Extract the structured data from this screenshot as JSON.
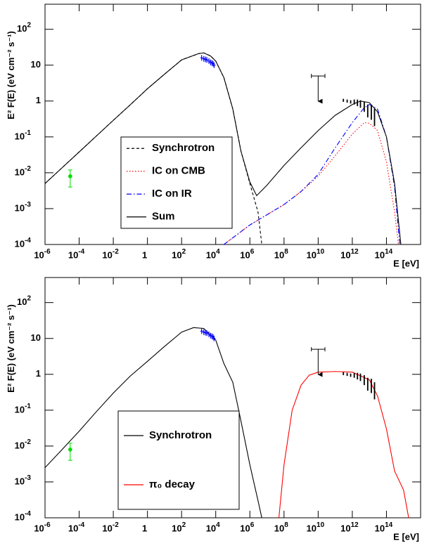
{
  "chart_data": [
    {
      "type": "line",
      "xscale": "log",
      "yscale": "log",
      "xlabel": "E [eV]",
      "ylabel": "E² F(E) (eV cm⁻² s⁻¹)",
      "xlim": [
        1e-06,
        1e+16
      ],
      "ylim": [
        0.0001,
        500
      ],
      "xticks": [
        {
          "value": 1e-06,
          "label": "10",
          "exponent": "-6"
        },
        {
          "value": 0.0001,
          "label": "10",
          "exponent": "-4"
        },
        {
          "value": 0.01,
          "label": "10",
          "exponent": "-2"
        },
        1,
        {
          "value": 100,
          "label": "10",
          "exponent": "2"
        },
        {
          "value": 10000.0,
          "label": "10",
          "exponent": "4"
        },
        {
          "value": 1000000.0,
          "label": "10",
          "exponent": "6"
        },
        {
          "value": 100000000.0,
          "label": "10",
          "exponent": "8"
        },
        {
          "value": 10000000000.0,
          "label": "10",
          "exponent": "10"
        },
        {
          "value": 1000000000000.0,
          "label": "10",
          "exponent": "12"
        },
        {
          "value": 100000000000000.0,
          "label": "10",
          "exponent": "14"
        }
      ],
      "yticks": [
        {
          "value": 0.0001,
          "label": "10",
          "exponent": "-4"
        },
        {
          "value": 0.001,
          "label": "10",
          "exponent": "-3"
        },
        {
          "value": 0.01,
          "label": "10",
          "exponent": "-2"
        },
        {
          "value": 0.1,
          "label": "10",
          "exponent": "-1"
        },
        1,
        10,
        {
          "value": 100,
          "label": "10",
          "exponent": "2"
        }
      ],
      "series": [
        {
          "name": "Synchrotron",
          "color": "#000000",
          "dash": "dashed",
          "x": [
            1e-06,
            1e-05,
            0.0001,
            0.001,
            0.01,
            0.1,
            1,
            10,
            100,
            1000,
            2000,
            5000,
            10000,
            30000,
            100000,
            300000,
            1000000,
            3000000,
            5000000
          ],
          "y": [
            0.005,
            0.0138,
            0.038,
            0.105,
            0.29,
            0.79,
            2.2,
            5.6,
            14,
            21,
            22,
            18,
            13,
            4.5,
            0.6,
            0.04,
            0.005,
            0.0008,
            0.0001
          ]
        },
        {
          "name": "IC on CMB",
          "color": "#ff0000",
          "dash": "dotted",
          "x": [
            30000,
            1000000,
            100000000,
            1000000000.0,
            10000000000.0,
            100000000000.0,
            1000000000000.0,
            5000000000000.0,
            10000000000000.0,
            30000000000000.0,
            100000000000000.0,
            300000000000000.0,
            500000000000000.0
          ],
          "y": [
            0.0001,
            0.00035,
            0.0013,
            0.003,
            0.008,
            0.03,
            0.12,
            0.25,
            0.24,
            0.15,
            0.02,
            0.0008,
            0.0001
          ]
        },
        {
          "name": "IC on IR",
          "color": "#0000ff",
          "dash": "dashdot",
          "x": [
            30000,
            1000000,
            100000000,
            1000000000.0,
            10000000000.0,
            100000000000.0,
            1000000000000.0,
            5000000000000.0,
            10000000000000.0,
            30000000000000.0,
            100000000000000.0,
            300000000000000.0,
            600000000000000.0
          ],
          "y": [
            0.0001,
            0.00035,
            0.0013,
            0.003,
            0.009,
            0.05,
            0.25,
            0.65,
            0.8,
            0.6,
            0.1,
            0.004,
            0.0001
          ]
        },
        {
          "name": "Sum",
          "color": "#000000",
          "dash": "solid",
          "x": [
            1e-06,
            1e-05,
            0.0001,
            0.001,
            0.01,
            0.1,
            1,
            10,
            100,
            1000,
            2000,
            5000,
            10000,
            30000,
            100000,
            300000,
            1000000,
            2500000,
            10000000,
            100000000,
            1000000000.0,
            10000000000.0,
            100000000000.0,
            1000000000000.0,
            3000000000000.0,
            10000000000000.0,
            30000000000000.0,
            100000000000000.0,
            300000000000000.0,
            700000000000000.0
          ],
          "y": [
            0.005,
            0.0138,
            0.038,
            0.105,
            0.29,
            0.79,
            2.2,
            5.6,
            14,
            21,
            22,
            18,
            13,
            4.5,
            0.6,
            0.04,
            0.0055,
            0.0023,
            0.0045,
            0.016,
            0.05,
            0.15,
            0.4,
            0.8,
            1.0,
            0.9,
            0.5,
            0.1,
            0.005,
            0.0001
          ]
        }
      ],
      "points": [
        {
          "color": "#00dd00",
          "marker": "circle",
          "x": [
            3e-05
          ],
          "y": [
            0.008
          ],
          "y_low": [
            0.004
          ],
          "y_high": [
            0.012
          ]
        },
        {
          "color": "#0000ff",
          "marker": "cross",
          "x": [
            1500,
            2000,
            2500,
            3000,
            4000,
            5000,
            6000,
            7000,
            8000
          ],
          "y": [
            16,
            15,
            14.5,
            14,
            13,
            12,
            11.5,
            11,
            10
          ]
        },
        {
          "color": "#000000",
          "marker": "none",
          "x": [
            300000000000.0,
            500000000000.0,
            800000000000.0,
            1300000000000.0,
            2000000000000.0,
            3000000000000.0,
            5000000000000.0,
            8000000000000.0,
            13000000000000.0,
            20000000000000.0
          ],
          "y": [
            1.05,
            1.0,
            0.95,
            0.95,
            0.9,
            0.85,
            0.7,
            0.55,
            0.5,
            0.35
          ],
          "y_low": [
            0.95,
            0.9,
            0.85,
            0.8,
            0.72,
            0.65,
            0.5,
            0.35,
            0.3,
            0.2
          ],
          "y_high": [
            1.15,
            1.1,
            1.05,
            1.1,
            1.1,
            1.05,
            0.95,
            0.8,
            0.75,
            0.6
          ]
        }
      ],
      "upper_limits": {
        "color": "#000000",
        "x": [
          10000000000.0
        ],
        "x_low": [
          4000000000.0
        ],
        "x_high": [
          25000000000.0
        ],
        "y": [
          5
        ]
      }
    },
    {
      "type": "line",
      "xscale": "log",
      "yscale": "log",
      "xlabel": "E [eV]",
      "ylabel": "E² F(E) (eV cm⁻² s⁻¹)",
      "xlim": [
        1e-06,
        1e+16
      ],
      "ylim": [
        0.0001,
        500
      ],
      "xticks": [
        {
          "value": 1e-06,
          "label": "10",
          "exponent": "-6"
        },
        {
          "value": 0.0001,
          "label": "10",
          "exponent": "-4"
        },
        {
          "value": 0.01,
          "label": "10",
          "exponent": "-2"
        },
        1,
        {
          "value": 100,
          "label": "10",
          "exponent": "2"
        },
        {
          "value": 10000.0,
          "label": "10",
          "exponent": "4"
        },
        {
          "value": 1000000.0,
          "label": "10",
          "exponent": "6"
        },
        {
          "value": 100000000.0,
          "label": "10",
          "exponent": "8"
        },
        {
          "value": 10000000000.0,
          "label": "10",
          "exponent": "10"
        },
        {
          "value": 1000000000000.0,
          "label": "10",
          "exponent": "12"
        },
        {
          "value": 100000000000000.0,
          "label": "10",
          "exponent": "14"
        }
      ],
      "yticks": [
        {
          "value": 0.0001,
          "label": "10",
          "exponent": "-4"
        },
        {
          "value": 0.001,
          "label": "10",
          "exponent": "-3"
        },
        {
          "value": 0.01,
          "label": "10",
          "exponent": "-2"
        },
        {
          "value": 0.1,
          "label": "10",
          "exponent": "-1"
        },
        1,
        10,
        {
          "value": 100,
          "label": "10",
          "exponent": "2"
        }
      ],
      "series": [
        {
          "name": "Synchrotron",
          "color": "#000000",
          "dash": "solid",
          "x": [
            1e-06,
            1e-05,
            0.0001,
            0.001,
            0.01,
            0.1,
            1,
            10,
            100,
            500,
            2000,
            10000,
            30000,
            100000,
            300000,
            1000000,
            3000000,
            5000000
          ],
          "y": [
            0.0025,
            0.008,
            0.026,
            0.09,
            0.3,
            0.9,
            2.3,
            6,
            15,
            20,
            19,
            9,
            2,
            0.6,
            0.05,
            0.003,
            0.0003,
            0.0001
          ]
        },
        {
          "name": "π₀ decay",
          "color": "#ff0000",
          "dash": "solid",
          "x": [
            50000000,
            100000000,
            300000000,
            1000000000.0,
            3000000000.0,
            10000000000.0,
            100000000000.0,
            1000000000000.0,
            10000000000000.0,
            30000000000000.0,
            100000000000000.0,
            300000000000000.0,
            1000000000000000.0,
            2000000000000000.0
          ],
          "y": [
            0.0001,
            0.003,
            0.1,
            0.5,
            0.95,
            1.15,
            1.2,
            1.15,
            0.7,
            0.25,
            0.03,
            0.002,
            0.0006,
            0.0001
          ]
        }
      ],
      "points": [
        {
          "color": "#00dd00",
          "marker": "circle",
          "x": [
            3e-05
          ],
          "y": [
            0.008
          ],
          "y_low": [
            0.004
          ],
          "y_high": [
            0.012
          ]
        },
        {
          "color": "#0000ff",
          "marker": "cross",
          "x": [
            1500,
            2000,
            2500,
            3000,
            4000,
            5000,
            6000,
            7000,
            8000
          ],
          "y": [
            16,
            15,
            14.5,
            14,
            13,
            12,
            11.5,
            11,
            10
          ]
        },
        {
          "color": "#000000",
          "marker": "none",
          "x": [
            300000000000.0,
            500000000000.0,
            800000000000.0,
            1300000000000.0,
            2000000000000.0,
            3000000000000.0,
            5000000000000.0,
            8000000000000.0,
            13000000000000.0,
            20000000000000.0
          ],
          "y": [
            1.05,
            1.0,
            0.95,
            0.95,
            0.9,
            0.85,
            0.7,
            0.55,
            0.5,
            0.35
          ],
          "y_low": [
            0.95,
            0.9,
            0.85,
            0.8,
            0.72,
            0.65,
            0.5,
            0.35,
            0.3,
            0.2
          ],
          "y_high": [
            1.15,
            1.1,
            1.05,
            1.1,
            1.1,
            1.05,
            0.95,
            0.8,
            0.75,
            0.6
          ]
        }
      ],
      "upper_limits": {
        "color": "#000000",
        "x": [
          10000000000.0
        ],
        "x_low": [
          4000000000.0
        ],
        "x_high": [
          25000000000.0
        ],
        "y": [
          5
        ]
      }
    }
  ]
}
